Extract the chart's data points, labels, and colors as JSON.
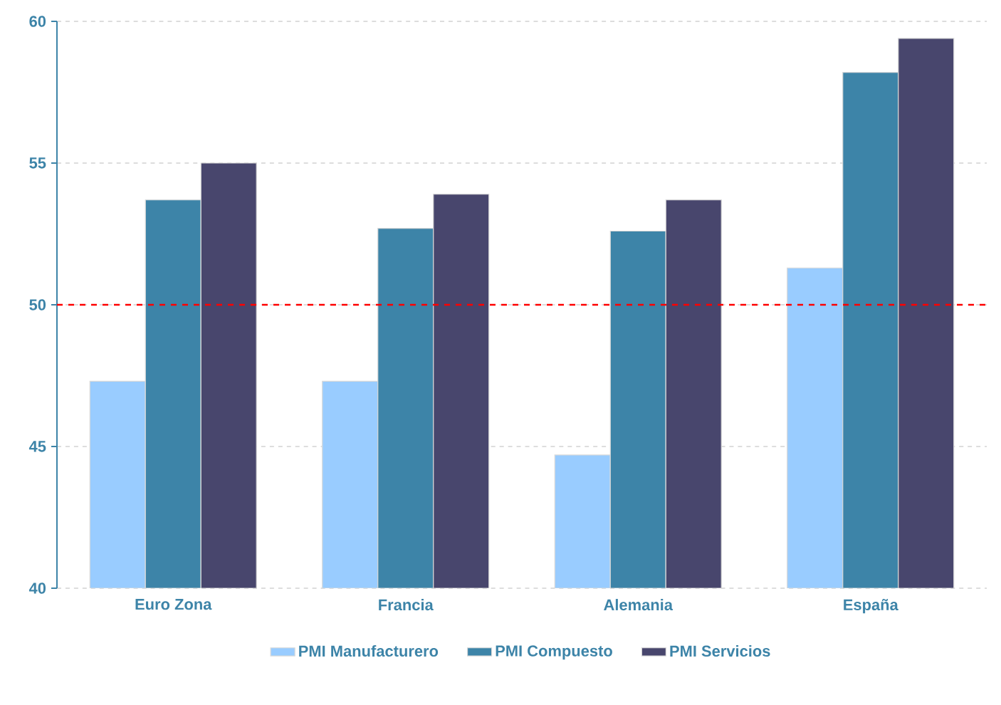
{
  "chart_data": {
    "type": "bar",
    "categories": [
      "Euro Zona",
      "Francia",
      "Alemania",
      "España"
    ],
    "series": [
      {
        "name": "PMI Manufacturero",
        "color": "#99ccff",
        "values": [
          47.3,
          47.3,
          44.7,
          51.3
        ]
      },
      {
        "name": "PMI Compuesto",
        "color": "#3d84a8",
        "values": [
          53.7,
          52.7,
          52.6,
          58.2
        ]
      },
      {
        "name": "PMI Servicios",
        "color": "#48466d",
        "values": [
          55.0,
          53.9,
          53.7,
          59.4
        ]
      }
    ],
    "ylim": [
      40,
      60
    ],
    "yticks": [
      40,
      45,
      50,
      55,
      60
    ],
    "grid": "y",
    "legend": "bottom",
    "ref_lines": [
      {
        "axis": "y",
        "value": 50,
        "color": "#ff0000",
        "line_style": "dashed"
      }
    ]
  }
}
